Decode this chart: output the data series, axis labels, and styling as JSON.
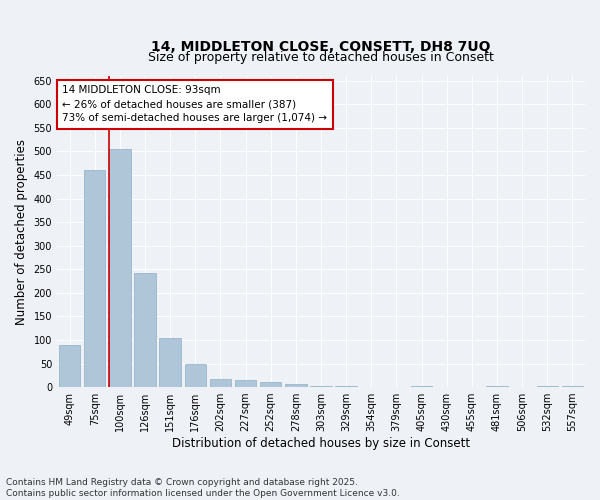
{
  "title": "14, MIDDLETON CLOSE, CONSETT, DH8 7UQ",
  "subtitle": "Size of property relative to detached houses in Consett",
  "xlabel": "Distribution of detached houses by size in Consett",
  "ylabel": "Number of detached properties",
  "categories": [
    "49sqm",
    "75sqm",
    "100sqm",
    "126sqm",
    "151sqm",
    "176sqm",
    "202sqm",
    "227sqm",
    "252sqm",
    "278sqm",
    "303sqm",
    "329sqm",
    "354sqm",
    "379sqm",
    "405sqm",
    "430sqm",
    "455sqm",
    "481sqm",
    "506sqm",
    "532sqm",
    "557sqm"
  ],
  "values": [
    90,
    460,
    505,
    242,
    105,
    48,
    18,
    14,
    10,
    7,
    3,
    2,
    0,
    0,
    3,
    0,
    0,
    2,
    0,
    2,
    2
  ],
  "bar_color": "#aec6d8",
  "bar_edge_color": "#8eafc5",
  "vline_color": "#cc0000",
  "vline_index": 2,
  "annotation_text": "14 MIDDLETON CLOSE: 93sqm\n← 26% of detached houses are smaller (387)\n73% of semi-detached houses are larger (1,074) →",
  "annotation_box_color": "#ffffff",
  "annotation_border_color": "#cc0000",
  "ylim": [
    0,
    660
  ],
  "yticks": [
    0,
    50,
    100,
    150,
    200,
    250,
    300,
    350,
    400,
    450,
    500,
    550,
    600,
    650
  ],
  "background_color": "#eef2f7",
  "grid_color": "#ffffff",
  "footer_line1": "Contains HM Land Registry data © Crown copyright and database right 2025.",
  "footer_line2": "Contains public sector information licensed under the Open Government Licence v3.0.",
  "title_fontsize": 10,
  "subtitle_fontsize": 9,
  "tick_fontsize": 7,
  "label_fontsize": 8.5,
  "footer_fontsize": 6.5
}
